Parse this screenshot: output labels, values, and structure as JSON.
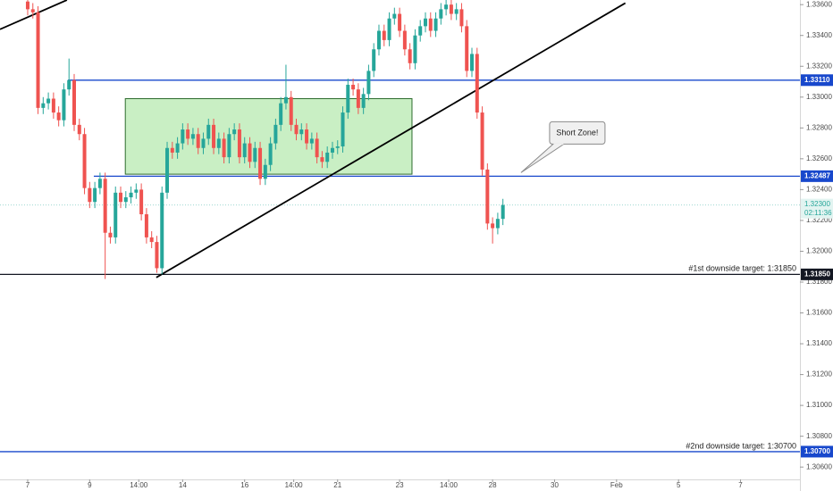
{
  "chart_data": {
    "type": "candlestick",
    "x": [
      0,
      1,
      2,
      3,
      4,
      5,
      6,
      7,
      8,
      9,
      10,
      11,
      12,
      13,
      14,
      15,
      16,
      17,
      18,
      19,
      20,
      21,
      22,
      23,
      24,
      25,
      26,
      27,
      28,
      29,
      30,
      31,
      32,
      33,
      34,
      35,
      36,
      37,
      38,
      39,
      40,
      41,
      42,
      43,
      44,
      45,
      46,
      47,
      48,
      49,
      50,
      51,
      52,
      53,
      54,
      55,
      56,
      57,
      58,
      59,
      60,
      61,
      62,
      63,
      64,
      65,
      66,
      67,
      68,
      69,
      70,
      71,
      72,
      73,
      74,
      75,
      76,
      77,
      78,
      79,
      80,
      81,
      82,
      83,
      84,
      85,
      86,
      87,
      88,
      89,
      90,
      91,
      92
    ],
    "open": [
      1.3362,
      1.3357,
      1.3355,
      1.3293,
      1.3296,
      1.3299,
      1.329,
      1.3285,
      1.3305,
      1.3311,
      1.3282,
      1.3276,
      1.3241,
      1.3232,
      1.3241,
      1.3247,
      1.3212,
      1.3209,
      1.3238,
      1.3232,
      1.3235,
      1.3238,
      1.324,
      1.3224,
      1.3209,
      1.3206,
      1.3189,
      1.3238,
      1.3267,
      1.3264,
      1.327,
      1.3279,
      1.3273,
      1.3276,
      1.3267,
      1.3273,
      1.3282,
      1.3267,
      1.3273,
      1.3261,
      1.3276,
      1.3279,
      1.3261,
      1.327,
      1.3258,
      1.3267,
      1.3247,
      1.3256,
      1.327,
      1.3282,
      1.3296,
      1.33,
      1.3282,
      1.3276,
      1.3279,
      1.327,
      1.3273,
      1.3261,
      1.3258,
      1.3264,
      1.3267,
      1.3268,
      1.329,
      1.3308,
      1.3305,
      1.3293,
      1.3302,
      1.3317,
      1.3331,
      1.3343,
      1.3337,
      1.3351,
      1.3354,
      1.3343,
      1.3331,
      1.3322,
      1.334,
      1.3346,
      1.3351,
      1.3343,
      1.3351,
      1.3357,
      1.336,
      1.3354,
      1.3357,
      1.3346,
      1.3317,
      1.3328,
      1.329,
      1.3253,
      1.3218,
      1.3215,
      1.3221
    ],
    "high": [
      1.3366,
      1.3361,
      1.3359,
      1.33,
      1.3303,
      1.3303,
      1.3294,
      1.3309,
      1.3325,
      1.3315,
      1.3286,
      1.328,
      1.3245,
      1.3245,
      1.3251,
      1.3251,
      1.3216,
      1.3242,
      1.3242,
      1.3239,
      1.3242,
      1.3244,
      1.3244,
      1.3228,
      1.3213,
      1.321,
      1.3242,
      1.3271,
      1.3271,
      1.3274,
      1.3283,
      1.3283,
      1.328,
      1.328,
      1.3277,
      1.3286,
      1.3286,
      1.3277,
      1.3277,
      1.328,
      1.3283,
      1.3283,
      1.3274,
      1.3274,
      1.3271,
      1.3271,
      1.326,
      1.3274,
      1.3286,
      1.33,
      1.3321,
      1.3304,
      1.3286,
      1.3283,
      1.3283,
      1.3277,
      1.3277,
      1.3265,
      1.3268,
      1.3271,
      1.3272,
      1.3294,
      1.3312,
      1.3312,
      1.3309,
      1.3306,
      1.3321,
      1.3335,
      1.3347,
      1.3347,
      1.3355,
      1.3358,
      1.3358,
      1.3347,
      1.3335,
      1.3344,
      1.335,
      1.3355,
      1.3355,
      1.3355,
      1.3361,
      1.3364,
      1.3364,
      1.3361,
      1.3361,
      1.335,
      1.3332,
      1.3332,
      1.3294,
      1.3257,
      1.3222,
      1.3225,
      1.3234
    ],
    "low": [
      1.3353,
      1.3351,
      1.3289,
      1.3289,
      1.3292,
      1.3286,
      1.3281,
      1.3281,
      1.3301,
      1.3278,
      1.3272,
      1.3237,
      1.3228,
      1.3228,
      1.3237,
      1.3182,
      1.3205,
      1.3205,
      1.3228,
      1.3228,
      1.3231,
      1.3234,
      1.322,
      1.3205,
      1.3202,
      1.3186,
      1.3185,
      1.3234,
      1.326,
      1.326,
      1.3266,
      1.3269,
      1.3269,
      1.3263,
      1.3263,
      1.3269,
      1.3263,
      1.3263,
      1.3257,
      1.3257,
      1.3272,
      1.3257,
      1.3257,
      1.3254,
      1.3254,
      1.3243,
      1.3243,
      1.3252,
      1.3266,
      1.3278,
      1.3292,
      1.3278,
      1.3272,
      1.3272,
      1.3266,
      1.3266,
      1.3257,
      1.3254,
      1.3254,
      1.326,
      1.3263,
      1.3264,
      1.3286,
      1.3301,
      1.3289,
      1.3289,
      1.3298,
      1.3313,
      1.3327,
      1.3333,
      1.3333,
      1.3347,
      1.3339,
      1.3327,
      1.3318,
      1.3318,
      1.3336,
      1.3342,
      1.3339,
      1.3339,
      1.3347,
      1.3353,
      1.335,
      1.335,
      1.3342,
      1.3313,
      1.3313,
      1.3286,
      1.3249,
      1.3214,
      1.3205,
      1.3211,
      1.3217
    ],
    "close": [
      1.3357,
      1.3355,
      1.3293,
      1.3296,
      1.3299,
      1.329,
      1.3285,
      1.3305,
      1.3311,
      1.3282,
      1.3276,
      1.3241,
      1.3232,
      1.3241,
      1.3247,
      1.3212,
      1.3209,
      1.3238,
      1.3232,
      1.3235,
      1.3238,
      1.324,
      1.3224,
      1.3209,
      1.3206,
      1.3189,
      1.3238,
      1.3267,
      1.3264,
      1.327,
      1.3279,
      1.3273,
      1.3276,
      1.3267,
      1.3273,
      1.3282,
      1.3267,
      1.3273,
      1.3261,
      1.3276,
      1.3279,
      1.3261,
      1.327,
      1.3258,
      1.3267,
      1.3247,
      1.3256,
      1.327,
      1.3282,
      1.3296,
      1.33,
      1.3282,
      1.3276,
      1.3279,
      1.327,
      1.3273,
      1.3261,
      1.3258,
      1.3264,
      1.3267,
      1.3268,
      1.329,
      1.3308,
      1.3305,
      1.3293,
      1.3302,
      1.3317,
      1.3331,
      1.3343,
      1.3337,
      1.3351,
      1.3354,
      1.3343,
      1.3331,
      1.3322,
      1.334,
      1.3346,
      1.3351,
      1.3343,
      1.3351,
      1.3357,
      1.336,
      1.3354,
      1.3357,
      1.3346,
      1.3317,
      1.3328,
      1.329,
      1.3253,
      1.3218,
      1.3215,
      1.3221,
      1.323
    ],
    "up_color": "#26a69a",
    "down_color": "#ef5350",
    "xlim": [
      -5.36,
      149.5
    ],
    "xticks": [
      {
        "value": 0,
        "label": "7"
      },
      {
        "value": 12,
        "label": "9"
      },
      {
        "value": 21.5,
        "label": "14:00"
      },
      {
        "value": 30,
        "label": "14"
      },
      {
        "value": 42,
        "label": "16"
      },
      {
        "value": 51.5,
        "label": "14:00"
      },
      {
        "value": 60,
        "label": "21"
      },
      {
        "value": 72,
        "label": "23"
      },
      {
        "value": 81.5,
        "label": "14:00"
      },
      {
        "value": 90,
        "label": "28"
      },
      {
        "value": 102,
        "label": "30"
      },
      {
        "value": 114,
        "label": "Feb"
      },
      {
        "value": 126,
        "label": "5"
      },
      {
        "value": 138,
        "label": "7"
      }
    ],
    "ylim": [
      1.3052,
      1.3363
    ],
    "yticks": [
      {
        "value": 1.336,
        "label": "1.33600"
      },
      {
        "value": 1.334,
        "label": "1.33400"
      },
      {
        "value": 1.332,
        "label": "1.33200"
      },
      {
        "value": 1.33,
        "label": "1.33000"
      },
      {
        "value": 1.328,
        "label": "1.32800"
      },
      {
        "value": 1.326,
        "label": "1.32600"
      },
      {
        "value": 1.324,
        "label": "1.32400"
      },
      {
        "value": 1.322,
        "label": "1.32200"
      },
      {
        "value": 1.32,
        "label": "1.32000"
      },
      {
        "value": 1.318,
        "label": "1.31800"
      },
      {
        "value": 1.316,
        "label": "1.31600"
      },
      {
        "value": 1.314,
        "label": "1.31400"
      },
      {
        "value": 1.312,
        "label": "1.31200"
      },
      {
        "value": 1.31,
        "label": "1.31000"
      },
      {
        "value": 1.308,
        "label": "1.30800"
      },
      {
        "value": 1.306,
        "label": "1.30600"
      }
    ],
    "levels": [
      {
        "value": 1.3311,
        "label": "1.33110",
        "x_start": 7.8,
        "color": "#1848cc"
      },
      {
        "value": 1.32487,
        "x_start": 12.8,
        "color": "#1848cc"
      },
      {
        "value": 1.3185,
        "label": "1.31850",
        "color": "#131722",
        "annotation": "#1st downside target: 1:31850"
      },
      {
        "value": 1.307,
        "label": "1.30700",
        "color": "#1848cc",
        "annotation": "#2nd downside target: 1:30700"
      }
    ],
    "trendlines": [
      {
        "x": [
          -5.36,
          7.6
        ],
        "y": [
          1.3344,
          1.3363
        ],
        "color": "#000000"
      },
      {
        "x": [
          24.9,
          115.7
        ],
        "y": [
          1.3183,
          1.3361
        ],
        "color": "#000000"
      }
    ],
    "zone": {
      "x": [
        18.9,
        74.4
      ],
      "y": [
        1.325,
        1.3299
      ],
      "color": "#c9efc4",
      "border": "#2e6b2e"
    },
    "callout": {
      "text": "Short Zone!",
      "x": 95.5,
      "y": 1.3251
    },
    "last_price": {
      "value": 1.323,
      "label": "1.32300",
      "countdown": "02:11:36"
    }
  }
}
